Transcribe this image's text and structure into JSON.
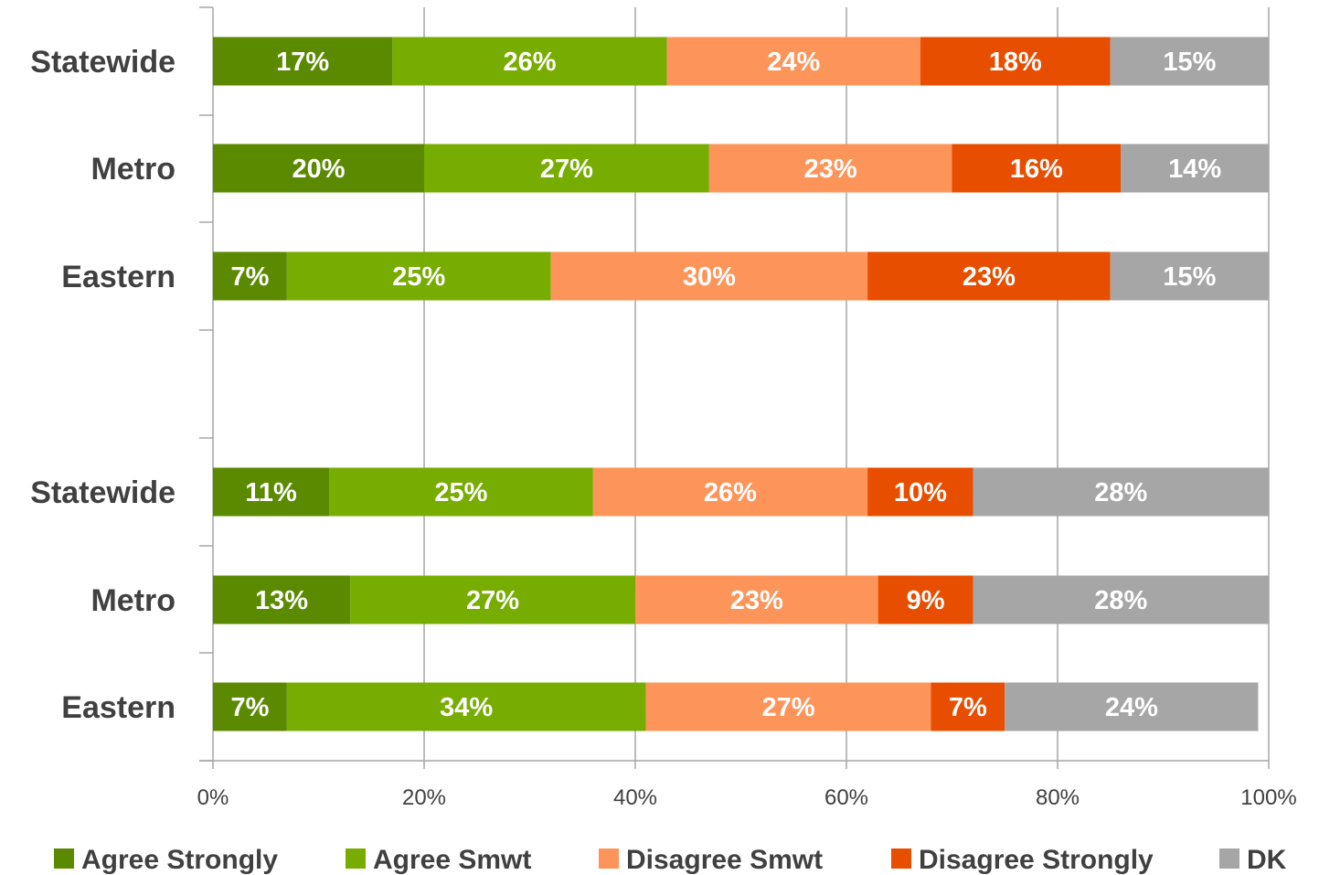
{
  "chart_data": {
    "type": "bar",
    "orientation": "horizontal",
    "stacked": "percent",
    "title": "",
    "xlabel": "",
    "ylabel": "",
    "xlim": [
      0,
      100
    ],
    "x_ticks": [
      "0%",
      "20%",
      "40%",
      "60%",
      "80%",
      "100%"
    ],
    "grid": "vertical",
    "legend_position": "bottom",
    "groups": [
      {
        "categories": [
          "Statewide",
          "Metro",
          "Eastern"
        ],
        "series": [
          {
            "name": "Agree Strongly",
            "values": [
              17,
              20,
              7
            ]
          },
          {
            "name": "Agree Smwt",
            "values": [
              26,
              27,
              25
            ]
          },
          {
            "name": "Disagree Smwt",
            "values": [
              24,
              23,
              30
            ]
          },
          {
            "name": "Disagree Strongly",
            "values": [
              18,
              16,
              23
            ]
          },
          {
            "name": "DK",
            "values": [
              15,
              14,
              15
            ]
          }
        ]
      },
      {
        "categories": [
          "Statewide",
          "Metro",
          "Eastern"
        ],
        "series": [
          {
            "name": "Agree Strongly",
            "values": [
              11,
              13,
              7
            ]
          },
          {
            "name": "Agree Smwt",
            "values": [
              25,
              27,
              34
            ]
          },
          {
            "name": "Disagree Smwt",
            "values": [
              26,
              23,
              27
            ]
          },
          {
            "name": "Disagree Strongly",
            "values": [
              10,
              9,
              7
            ]
          },
          {
            "name": "DK",
            "values": [
              28,
              28,
              24
            ]
          }
        ]
      }
    ],
    "colors": [
      "#5b8a00",
      "#77ac00",
      "#fd955a",
      "#e84e00",
      "#a6a6a6"
    ]
  }
}
